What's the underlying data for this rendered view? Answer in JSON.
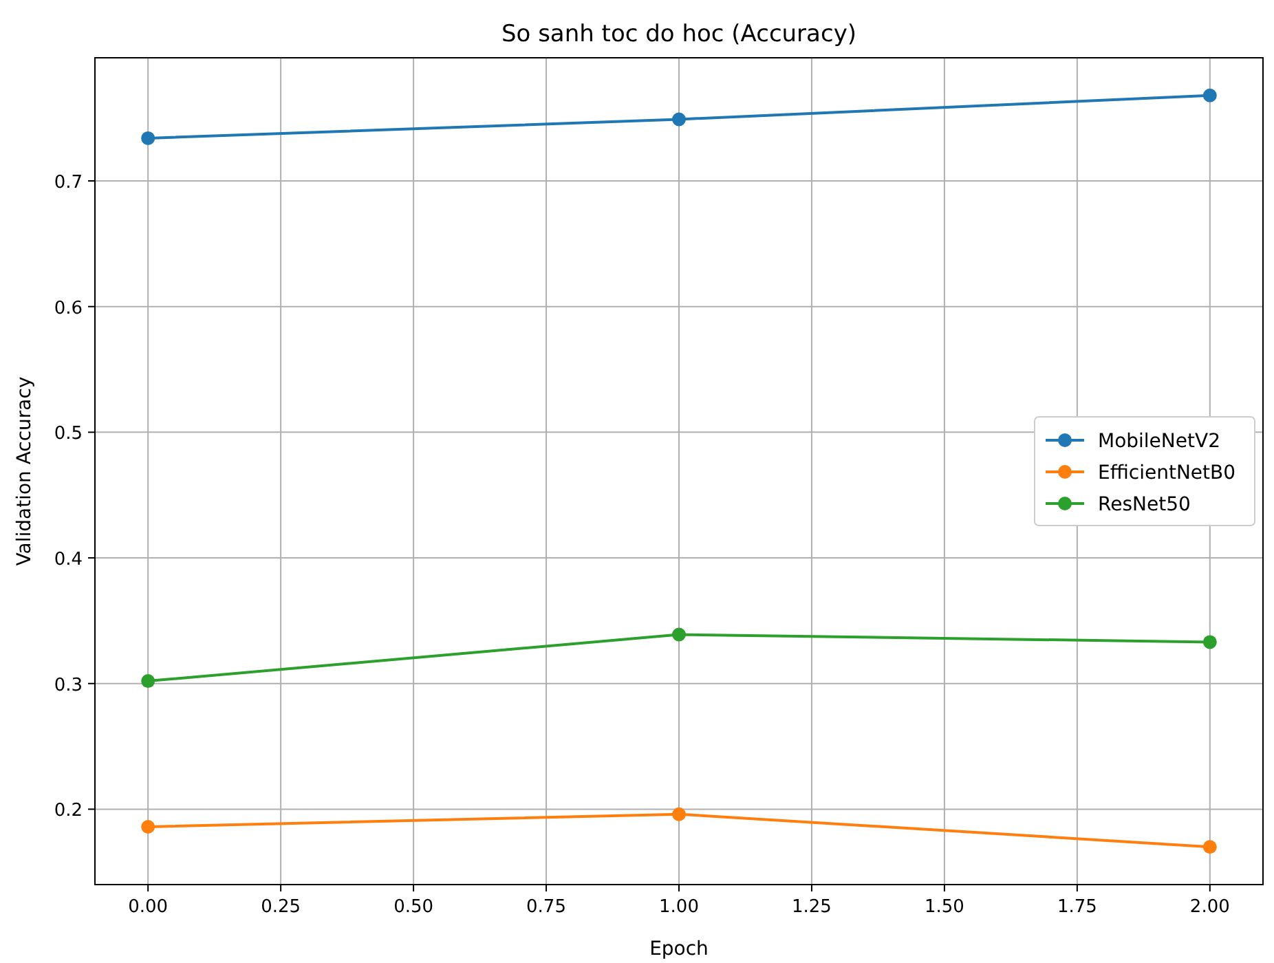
{
  "chart_data": {
    "type": "line",
    "title": "So sanh toc do hoc (Accuracy)",
    "xlabel": "Epoch",
    "ylabel": "Validation Accuracy",
    "x": [
      0,
      1,
      2
    ],
    "series": [
      {
        "name": "MobileNetV2",
        "color": "#1f77b4",
        "values": [
          0.734,
          0.749,
          0.768
        ]
      },
      {
        "name": "EfficientNetB0",
        "color": "#ff7f0e",
        "values": [
          0.186,
          0.196,
          0.17
        ]
      },
      {
        "name": "ResNet50",
        "color": "#2ca02c",
        "values": [
          0.302,
          0.339,
          0.333
        ]
      }
    ],
    "xlim": [
      -0.1,
      2.1
    ],
    "xticks": [
      {
        "value": 0,
        "label": "0.00"
      },
      {
        "value": 0.25,
        "label": "0.25"
      },
      {
        "value": 0.5,
        "label": "0.50"
      },
      {
        "value": 0.75,
        "label": "0.75"
      },
      {
        "value": 1,
        "label": "1.00"
      },
      {
        "value": 1.25,
        "label": "1.25"
      },
      {
        "value": 1.5,
        "label": "1.50"
      },
      {
        "value": 1.75,
        "label": "1.75"
      },
      {
        "value": 2,
        "label": "2.00"
      }
    ],
    "ylim": [
      0.14,
      0.798
    ],
    "yticks": [
      0.2,
      0.3,
      0.4,
      0.5,
      0.6,
      0.7
    ],
    "grid": true,
    "legend": "right",
    "marker": "circle",
    "line_style": "solid"
  }
}
